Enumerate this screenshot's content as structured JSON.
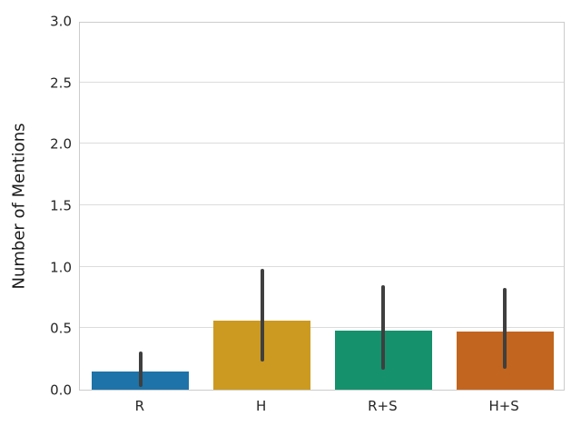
{
  "chart_data": {
    "type": "bar",
    "title": "",
    "xlabel": "",
    "ylabel": "Number of Mentions",
    "categories": [
      "R",
      "H",
      "R+S",
      "H+S"
    ],
    "values": [
      0.15,
      0.56,
      0.48,
      0.47
    ],
    "error_low": [
      0.02,
      0.23,
      0.16,
      0.17
    ],
    "error_high": [
      0.31,
      0.98,
      0.85,
      0.83
    ],
    "bar_colors": [
      "#1e73a8",
      "#cc9a20",
      "#15916c",
      "#c2651e"
    ],
    "error_bar_color": "#3f3f3f",
    "ylim": [
      0,
      3.0
    ],
    "ytick_labels": [
      "0.0",
      "0.5",
      "1.0",
      "1.5",
      "2.0",
      "2.5",
      "3.0"
    ],
    "ytick_values": [
      0,
      0.5,
      1.0,
      1.5,
      2.0,
      2.5,
      3.0
    ],
    "grid": "horizontal",
    "legend": "none"
  },
  "style": {
    "background_color": "#ffffff",
    "grid_color": "#dcdcdc",
    "spine_color": "#cccccc",
    "tick_label_color": "#262626",
    "axis_label_color": "#1a1a1a"
  }
}
